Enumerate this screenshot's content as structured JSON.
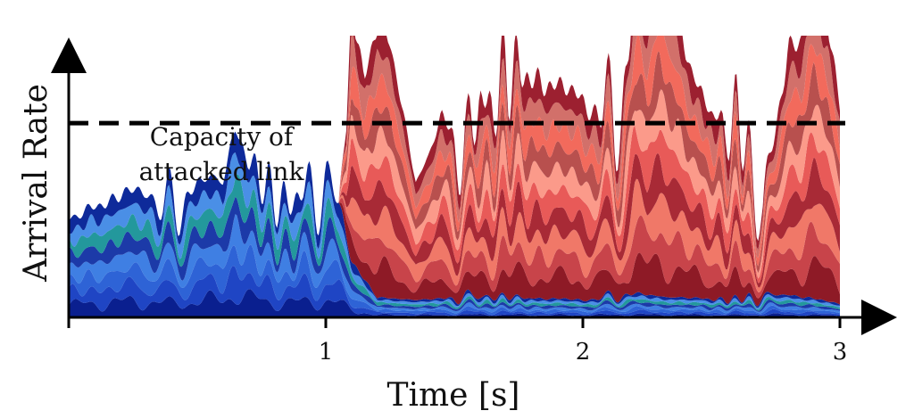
{
  "chart_data": {
    "type": "area",
    "stacked": true,
    "title": "",
    "xlabel": "Time [s]",
    "ylabel": "Arrival Rate",
    "xlim": [
      0,
      3
    ],
    "ylim": [
      0,
      1.45
    ],
    "x_ticks": [
      "1",
      "2",
      "3"
    ],
    "y_ticks": [],
    "grid": false,
    "legend": "none",
    "capacity_line": {
      "y": 1.0,
      "label_line1": "Capacity of",
      "label_line2": "attacked link",
      "style": "dashed",
      "color": "#000000"
    },
    "series_groups": [
      {
        "group": "blue",
        "colors": [
          "#0a1f8f",
          "#1f45c4",
          "#2e63d6",
          "#3f7fe3",
          "#1c3aa8",
          "#23989c",
          "#4a8fe6",
          "#0e2a9a"
        ],
        "x_start": 0.0,
        "x_end": 3.0,
        "total_x": [
          0.0,
          0.1,
          0.2,
          0.3,
          0.4,
          0.5,
          0.6,
          0.65,
          0.7,
          0.8,
          0.9,
          1.0,
          1.05,
          1.1,
          1.2,
          1.4,
          1.6,
          1.8,
          2.0,
          2.2,
          2.4,
          2.6,
          2.8,
          3.0
        ],
        "total_y": [
          0.48,
          0.58,
          0.62,
          0.66,
          0.55,
          0.68,
          0.72,
          1.0,
          0.78,
          0.62,
          0.6,
          0.7,
          0.58,
          0.3,
          0.1,
          0.09,
          0.11,
          0.1,
          0.09,
          0.12,
          0.1,
          0.09,
          0.12,
          0.07
        ]
      },
      {
        "group": "red",
        "colors": [
          "#8e1a26",
          "#c8444a",
          "#f07868",
          "#a82a36",
          "#e85a58",
          "#fb9a8a",
          "#b8504e",
          "#f26a5c",
          "#d2706a",
          "#9c2030"
        ],
        "x_start": 1.05,
        "x_end": 3.0,
        "total_x": [
          1.05,
          1.08,
          1.1,
          1.15,
          1.2,
          1.25,
          1.3,
          1.35,
          1.4,
          1.45,
          1.5,
          1.55,
          1.6,
          1.65,
          1.7,
          1.8,
          1.9,
          2.0,
          2.1,
          2.15,
          2.2,
          2.25,
          2.3,
          2.35,
          2.4,
          2.45,
          2.5,
          2.55,
          2.6,
          2.65,
          2.7,
          2.75,
          2.8,
          2.85,
          2.9,
          2.95,
          3.0
        ],
        "total_y": [
          0.0,
          0.55,
          1.35,
          1.05,
          1.38,
          1.3,
          0.98,
          0.62,
          0.72,
          0.92,
          0.85,
          0.7,
          1.05,
          1.0,
          1.15,
          1.15,
          1.08,
          1.05,
          0.92,
          0.95,
          1.55,
          1.4,
          1.78,
          1.55,
          1.25,
          1.05,
          1.0,
          0.88,
          0.92,
          0.68,
          0.45,
          0.82,
          1.3,
          1.35,
          1.62,
          1.42,
          1.05
        ]
      }
    ]
  }
}
